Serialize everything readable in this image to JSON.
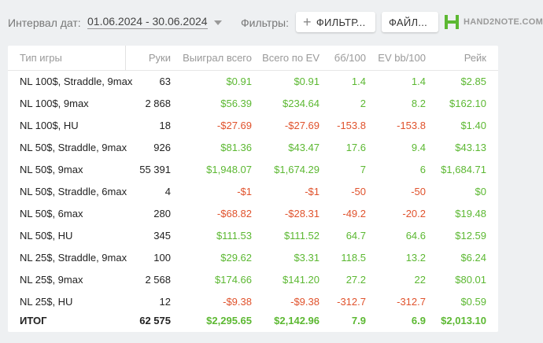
{
  "toolbar": {
    "interval_label": "Интервал дат:",
    "date_range": "01.06.2024 - 30.06.2024",
    "filters_label": "Фильтры:",
    "filter_button": "ФИЛЬТР...",
    "file_button": "ФАЙЛ...",
    "logo_text": "HAND2NOTE.COM"
  },
  "colors": {
    "positive": "#5cb832",
    "negative": "#e0522c",
    "accent": "#5cb832"
  },
  "table": {
    "columns": [
      "Тип игры",
      "Руки",
      "Выиграл всего",
      "Всего по EV",
      "бб/100",
      "EV bb/100",
      "Рейк"
    ],
    "rows": [
      {
        "name": "NL 100$, Straddle, 9max",
        "hands": "63",
        "won": "$0.91",
        "ev": "$0.91",
        "bb": "1.4",
        "evbb": "1.4",
        "rake": "$2.85"
      },
      {
        "name": "NL 100$, 9max",
        "hands": "2 868",
        "won": "$56.39",
        "ev": "$234.64",
        "bb": "2",
        "evbb": "8.2",
        "rake": "$162.10"
      },
      {
        "name": "NL 100$, HU",
        "hands": "18",
        "won": "-$27.69",
        "ev": "-$27.69",
        "bb": "-153.8",
        "evbb": "-153.8",
        "rake": "$1.40"
      },
      {
        "name": "NL 50$, Straddle, 9max",
        "hands": "926",
        "won": "$81.36",
        "ev": "$43.47",
        "bb": "17.6",
        "evbb": "9.4",
        "rake": "$43.13"
      },
      {
        "name": "NL 50$, 9max",
        "hands": "55 391",
        "won": "$1,948.07",
        "ev": "$1,674.29",
        "bb": "7",
        "evbb": "6",
        "rake": "$1,684.71"
      },
      {
        "name": "NL 50$, Straddle, 6max",
        "hands": "4",
        "won": "-$1",
        "ev": "-$1",
        "bb": "-50",
        "evbb": "-50",
        "rake": "$0"
      },
      {
        "name": "NL 50$, 6max",
        "hands": "280",
        "won": "-$68.82",
        "ev": "-$28.31",
        "bb": "-49.2",
        "evbb": "-20.2",
        "rake": "$19.48"
      },
      {
        "name": "NL 50$, HU",
        "hands": "345",
        "won": "$111.53",
        "ev": "$111.52",
        "bb": "64.7",
        "evbb": "64.6",
        "rake": "$12.59"
      },
      {
        "name": "NL 25$, Straddle, 9max",
        "hands": "100",
        "won": "$29.62",
        "ev": "$3.31",
        "bb": "118.5",
        "evbb": "13.2",
        "rake": "$6.24"
      },
      {
        "name": "NL 25$, 9max",
        "hands": "2 568",
        "won": "$174.66",
        "ev": "$141.20",
        "bb": "27.2",
        "evbb": "22",
        "rake": "$80.01"
      },
      {
        "name": "NL 25$, HU",
        "hands": "12",
        "won": "-$9.38",
        "ev": "-$9.38",
        "bb": "-312.7",
        "evbb": "-312.7",
        "rake": "$0.59"
      }
    ],
    "total": {
      "name": "ИТОГ",
      "hands": "62 575",
      "won": "$2,295.65",
      "ev": "$2,142.96",
      "bb": "7.9",
      "evbb": "6.9",
      "rake": "$2,013.10"
    }
  }
}
